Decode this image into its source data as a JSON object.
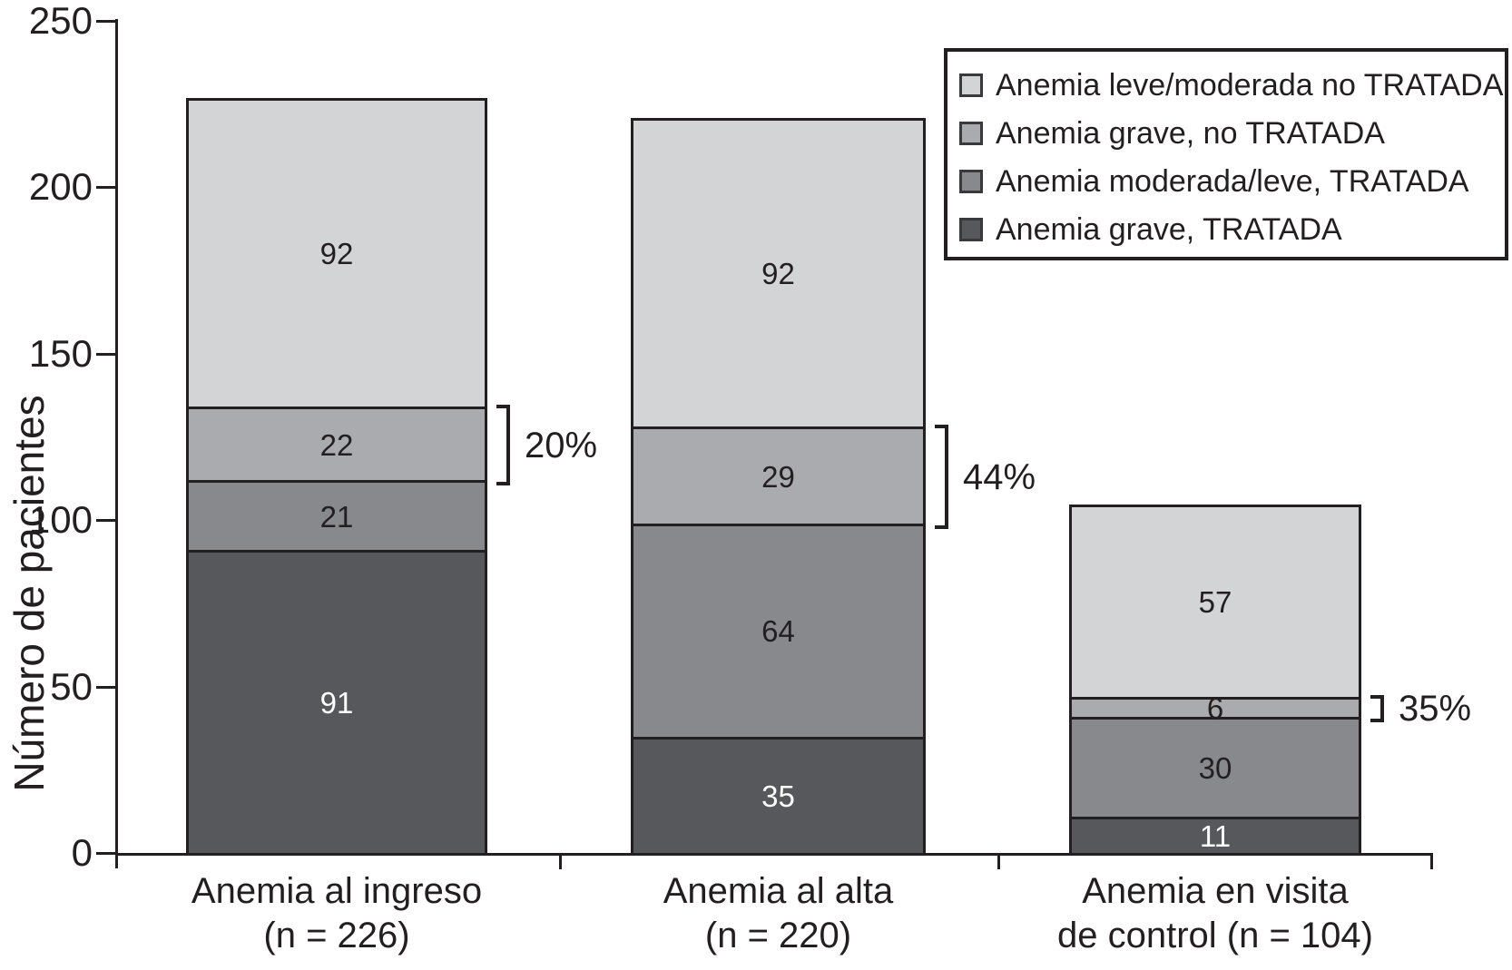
{
  "chart_data": {
    "type": "bar",
    "stacked": true,
    "ylabel": "Número de pacientes",
    "ylim": [
      0,
      250
    ],
    "yticks": [
      0,
      50,
      100,
      150,
      200,
      250
    ],
    "grid": false,
    "categories": [
      {
        "label_lines": [
          "Anemia al ingreso",
          "(n = 226)"
        ],
        "total": 226
      },
      {
        "label_lines": [
          "Anemia al alta",
          "(n = 220)"
        ],
        "total": 220
      },
      {
        "label_lines": [
          "Anemia en visita",
          "de control (n = 104)"
        ],
        "total": 104
      }
    ],
    "series": [
      {
        "name": "Anemia grave, TRATADA",
        "color": "#56585b",
        "label_color": "#ffffff",
        "values": [
          91,
          35,
          11
        ]
      },
      {
        "name": "Anemia moderada/leve, TRATADA",
        "color": "#87898c",
        "label_color": "#231f20",
        "values": [
          21,
          64,
          30
        ]
      },
      {
        "name": "Anemia grave, no TRATADA",
        "color": "#a9abae",
        "label_color": "#231f20",
        "values": [
          22,
          29,
          6
        ]
      },
      {
        "name": "Anemia leve/moderada no TRATADA",
        "color": "#d3d4d6",
        "label_color": "#231f20",
        "values": [
          92,
          92,
          57
        ]
      }
    ],
    "legend": {
      "position": "top-right",
      "items": [
        {
          "label": "Anemia leve/moderada no TRATADA",
          "color": "#d3d4d6"
        },
        {
          "label": "Anemia grave, no TRATADA",
          "color": "#a9abae"
        },
        {
          "label": "Anemia moderada/leve, TRATADA",
          "color": "#87898c"
        },
        {
          "label": "Anemia grave, TRATADA",
          "color": "#56585b"
        }
      ]
    },
    "annotations": [
      {
        "bar": 0,
        "stack_index": 2,
        "label": "20%"
      },
      {
        "bar": 1,
        "stack_index": 2,
        "label": "44%"
      },
      {
        "bar": 2,
        "stack_index": 2,
        "label": "35%"
      }
    ]
  },
  "colors": {
    "axis": "#231f20",
    "text": "#231f20",
    "background": "#ffffff"
  }
}
